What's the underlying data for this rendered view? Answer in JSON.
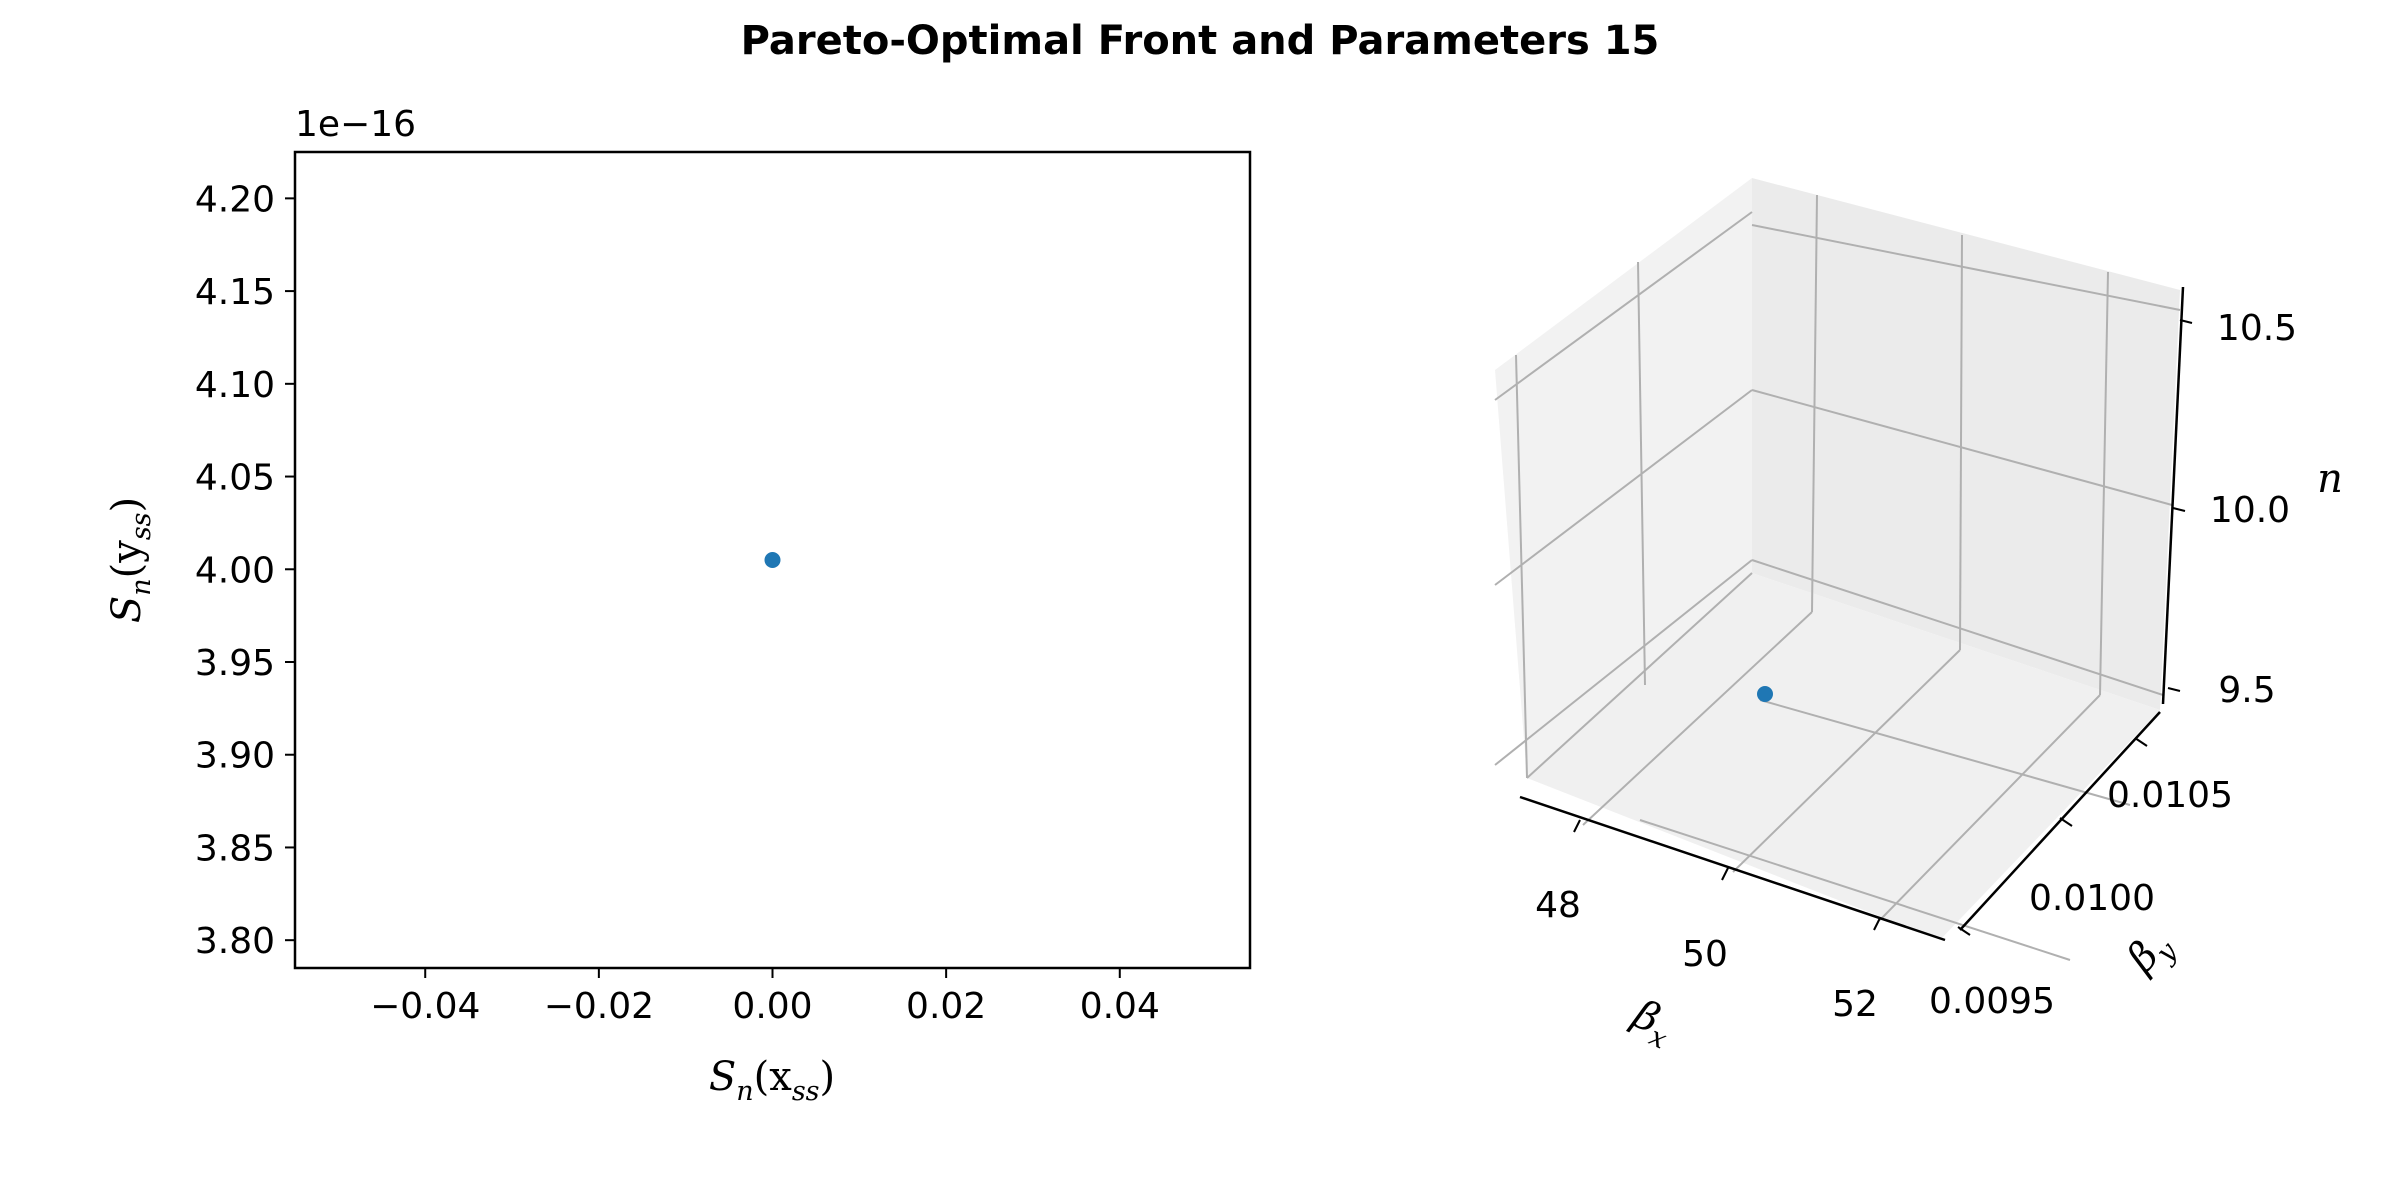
{
  "title": "Pareto-Optimal Front and Parameters 15",
  "accent_color": "#1f77b4",
  "chart_data": [
    {
      "type": "scatter",
      "points": [
        {
          "x": 0.0,
          "y": 4.005e-16
        }
      ],
      "xlim": [
        -0.055,
        0.055
      ],
      "ylim": [
        3.785e-16,
        4.225e-16
      ],
      "xticks": [
        -0.04,
        -0.02,
        0.0,
        0.02,
        0.04
      ],
      "xtick_labels": [
        "−0.04",
        "−0.02",
        "0.00",
        "0.02",
        "0.04"
      ],
      "yticks": [
        3.8,
        3.85,
        3.9,
        3.95,
        4.0,
        4.05,
        4.1,
        4.15,
        4.2
      ],
      "ytick_labels": [
        "3.80",
        "3.85",
        "3.90",
        "3.95",
        "4.00",
        "4.05",
        "4.10",
        "4.15",
        "4.20"
      ],
      "y_offset_text": "1e−16",
      "xlabel": {
        "base": "S",
        "sub": "n",
        "rest": "(x",
        "sub2": "ss",
        "close": ")"
      },
      "ylabel": {
        "base": "S",
        "sub": "n",
        "rest": "(y",
        "sub2": "ss",
        "close": ")"
      },
      "grid": false
    },
    {
      "type": "scatter3d",
      "points": [
        {
          "x": 50.0,
          "y": 0.01,
          "z": 10.0
        }
      ],
      "xticks": [
        48,
        50,
        52
      ],
      "xtick_labels": [
        "48",
        "50",
        "52"
      ],
      "yticks": [
        0.0095,
        0.01,
        0.0105
      ],
      "ytick_labels": [
        "0.0095",
        "0.0100",
        "0.0105"
      ],
      "zticks": [
        9.5,
        10.0,
        10.5
      ],
      "ztick_labels": [
        "9.5",
        "10.0",
        "10.5"
      ],
      "xlabel": {
        "base": "β",
        "sub": "x"
      },
      "ylabel": {
        "base": "β",
        "sub": "y"
      },
      "zlabel": "n",
      "grid": true
    }
  ]
}
